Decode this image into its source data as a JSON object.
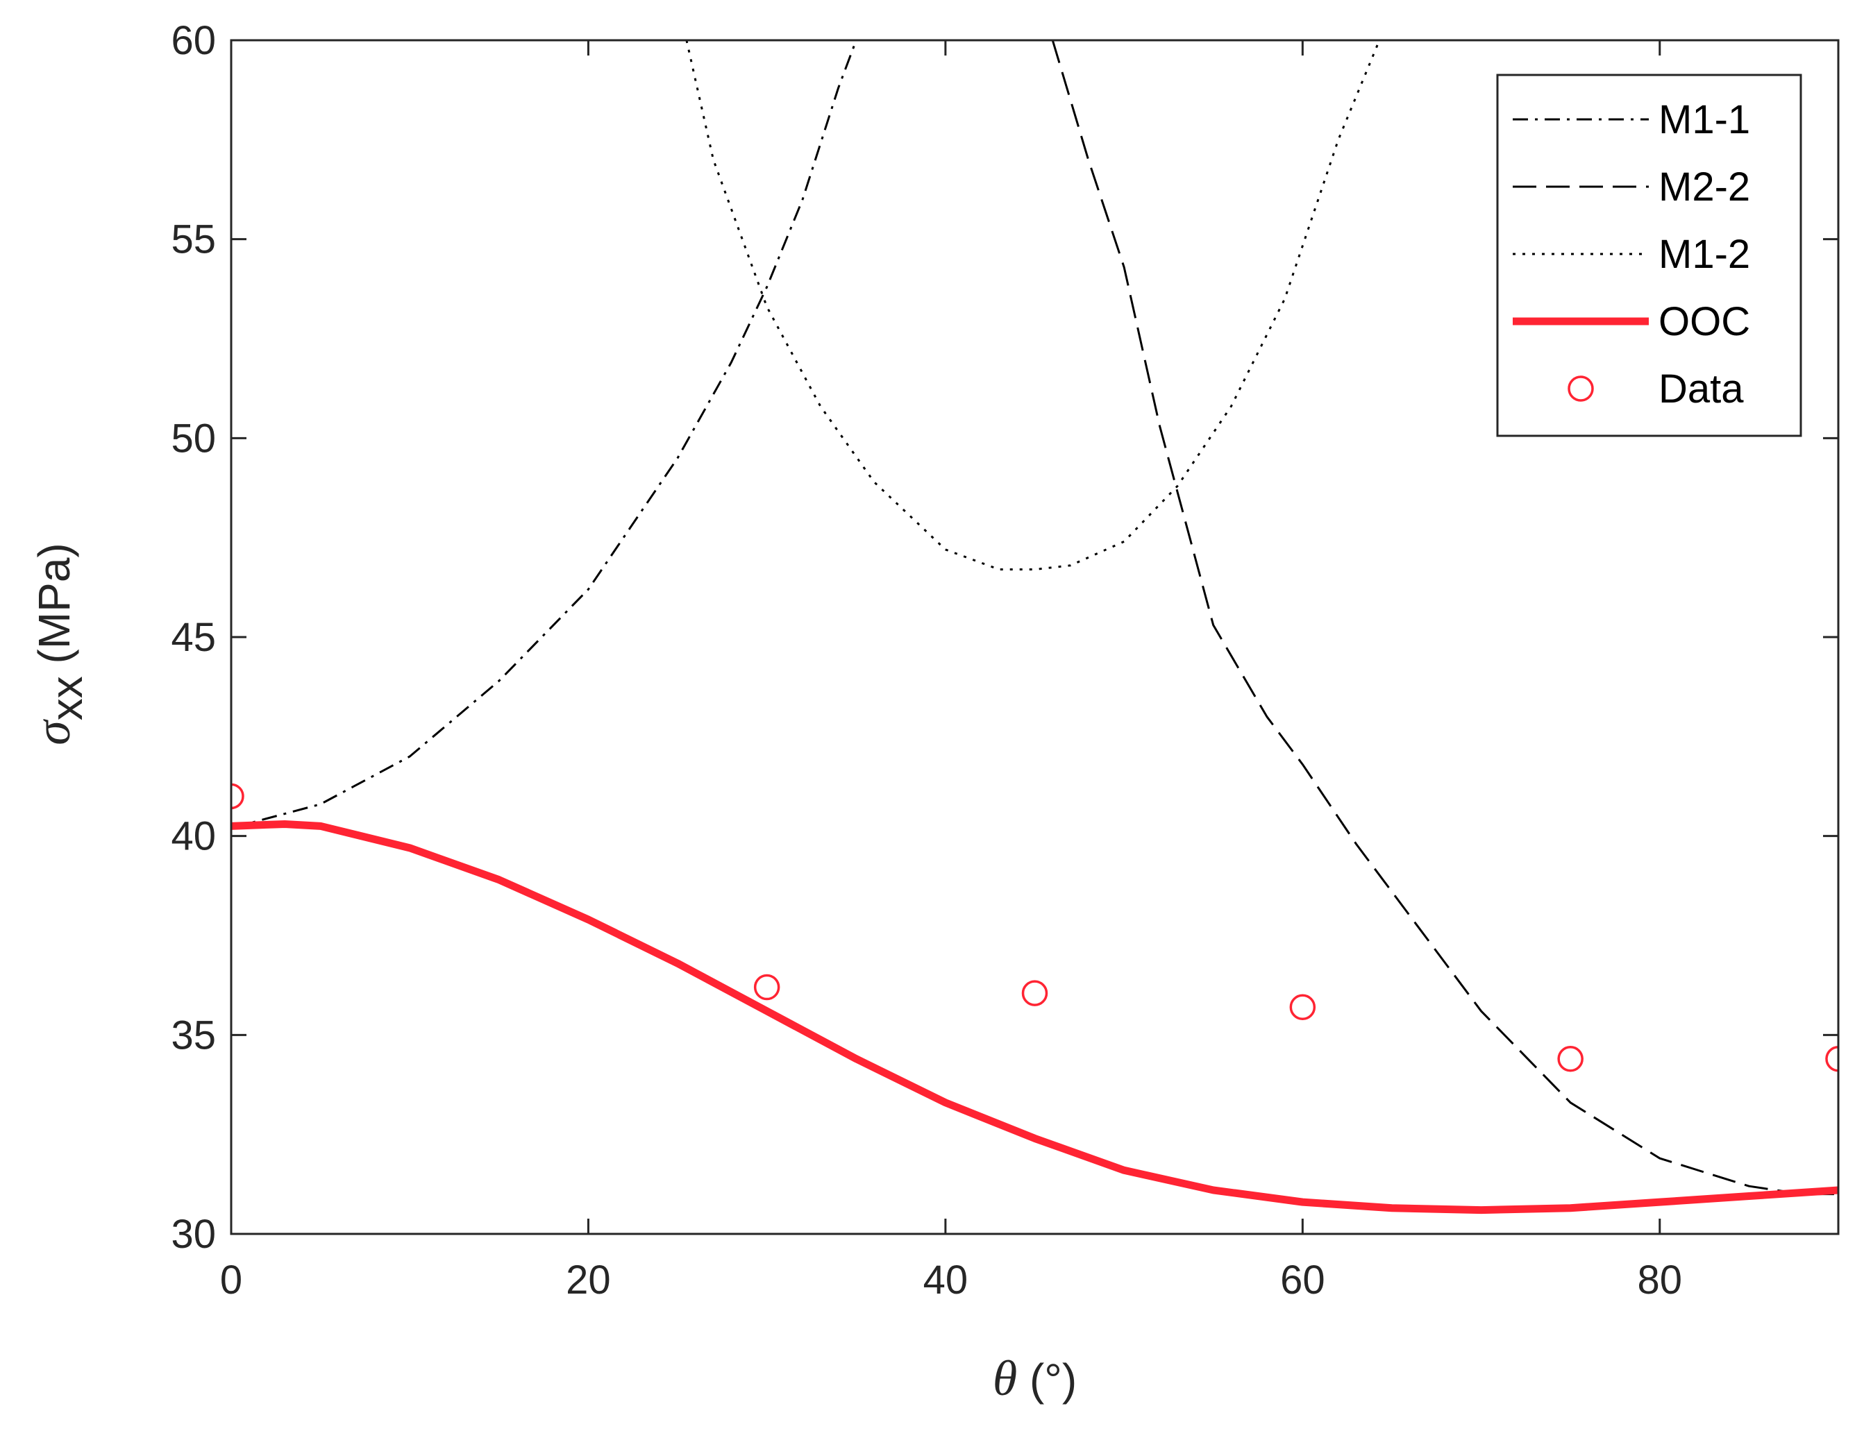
{
  "chart_data": {
    "type": "line",
    "xlabel": {
      "symbol": "θ",
      "unit": " (°)"
    },
    "ylabel": {
      "symbol": "σ",
      "subscript": "xx",
      "unit": " (MPa)"
    },
    "xlim": [
      0,
      90
    ],
    "ylim": [
      30,
      60
    ],
    "xticks": [
      0,
      20,
      40,
      60,
      80
    ],
    "yticks": [
      30,
      35,
      40,
      45,
      50,
      55,
      60
    ],
    "grid": false,
    "legend_position": "top-right",
    "series": [
      {
        "name": "M1-1",
        "style": "dashdot",
        "color": "#000000",
        "x": [
          0,
          5,
          10,
          15,
          20,
          25,
          28,
          30,
          32,
          34,
          35
        ],
        "y": [
          40.2,
          40.8,
          42.0,
          43.9,
          46.2,
          49.5,
          51.9,
          53.8,
          56.0,
          58.8,
          60.0
        ]
      },
      {
        "name": "M2-2",
        "style": "dash",
        "color": "#000000",
        "x": [
          46,
          48,
          50,
          52,
          55,
          58,
          60,
          63,
          65,
          70,
          75,
          80,
          85,
          88,
          90
        ],
        "y": [
          60.0,
          57.0,
          54.3,
          50.3,
          45.3,
          43.0,
          41.8,
          39.8,
          38.6,
          35.6,
          33.3,
          31.9,
          31.2,
          31.0,
          31.0
        ]
      },
      {
        "name": "M1-2",
        "style": "dot",
        "color": "#000000",
        "x": [
          25.5,
          27,
          30,
          33,
          36,
          40,
          43,
          45,
          47,
          50,
          53,
          56,
          59,
          62,
          64.3
        ],
        "y": [
          60.0,
          57.0,
          53.3,
          50.8,
          48.9,
          47.2,
          46.7,
          46.7,
          46.8,
          47.4,
          48.8,
          50.8,
          53.5,
          57.5,
          60.0
        ]
      },
      {
        "name": "OOC",
        "style": "solid",
        "color": "#ff2433",
        "x": [
          0,
          3,
          5,
          10,
          15,
          20,
          25,
          30,
          35,
          40,
          45,
          50,
          55,
          60,
          65,
          70,
          75,
          80,
          85,
          90
        ],
        "y": [
          40.25,
          40.3,
          40.25,
          39.7,
          38.9,
          37.9,
          36.8,
          35.6,
          34.4,
          33.3,
          32.4,
          31.6,
          31.1,
          30.8,
          30.65,
          30.6,
          30.65,
          30.8,
          30.95,
          31.1
        ]
      },
      {
        "name": "Data",
        "style": "marker",
        "color": "#ff2433",
        "x": [
          0,
          30,
          45,
          60,
          75,
          90
        ],
        "y": [
          41.0,
          36.2,
          36.05,
          35.7,
          34.4,
          34.4
        ]
      }
    ]
  }
}
